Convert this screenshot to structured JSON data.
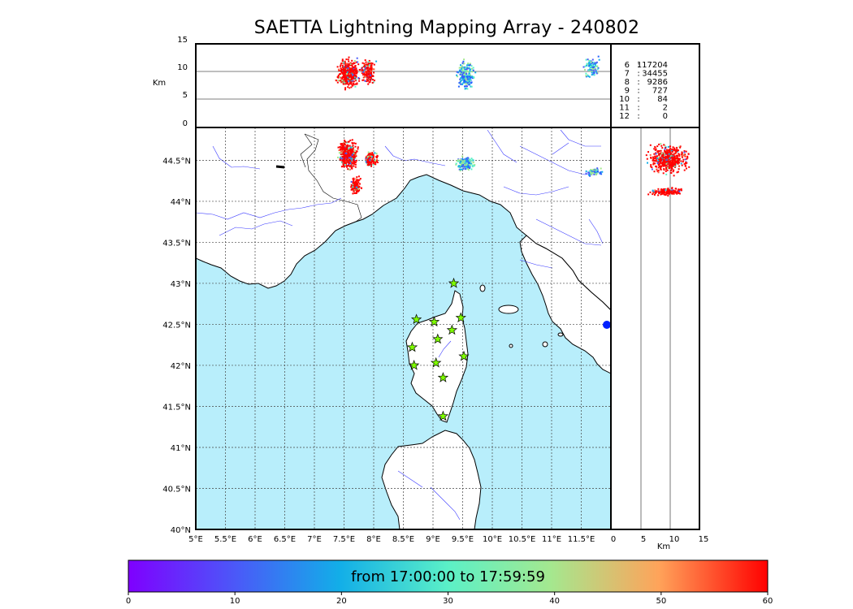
{
  "title": "SAETTA Lightning Mapping Array - 240802",
  "alt_axis": {
    "label": "Km",
    "ticks": [
      "15",
      "10",
      "5",
      "0"
    ],
    "x_ticks": [
      "0",
      "5",
      "10",
      "15"
    ],
    "x_label": "Km"
  },
  "map": {
    "lon_ticks": [
      "5°E",
      "5.5°E",
      "6°E",
      "6.5°E",
      "7°E",
      "7.5°E",
      "8°E",
      "8.5°E",
      "9°E",
      "9.5°E",
      "10°E",
      "10.5°E",
      "11°E",
      "11.5°E"
    ],
    "lat_ticks": [
      "44.5°N",
      "44°N",
      "43.5°N",
      "43°N",
      "42.5°N",
      "42°N",
      "41.5°N",
      "41°N",
      "40.5°N",
      "40°N"
    ],
    "sea_color": "#b8eefb",
    "coast_color": "#000000",
    "river_color": "#3a3aff",
    "station_color": "#7fff00",
    "stations": [
      {
        "lon": 9.35,
        "lat": 43.0
      },
      {
        "lon": 8.72,
        "lat": 42.56
      },
      {
        "lon": 9.02,
        "lat": 42.53
      },
      {
        "lon": 9.47,
        "lat": 42.58
      },
      {
        "lon": 9.32,
        "lat": 42.43
      },
      {
        "lon": 9.08,
        "lat": 42.32
      },
      {
        "lon": 8.65,
        "lat": 42.22
      },
      {
        "lon": 9.52,
        "lat": 42.11
      },
      {
        "lon": 8.68,
        "lat": 42.0
      },
      {
        "lon": 9.05,
        "lat": 42.03
      },
      {
        "lon": 9.17,
        "lat": 41.85
      },
      {
        "lon": 9.17,
        "lat": 41.38
      }
    ]
  },
  "station_counts": [
    {
      "key": "6",
      "value": "117204",
      "color": "#000000"
    },
    {
      "key": "7",
      "value": "34455",
      "color": "#ff0000"
    },
    {
      "key": "8",
      "value": "9286",
      "color": "#000000"
    },
    {
      "key": "9",
      "value": "727",
      "color": "#000000"
    },
    {
      "key": "10",
      "value": "84",
      "color": "#000000"
    },
    {
      "key": "11",
      "value": "2",
      "color": "#000000"
    },
    {
      "key": "12",
      "value": "0",
      "color": "#000000"
    }
  ],
  "colorbar": {
    "label": "from 17:00:00 to 17:59:59",
    "ticks": [
      "0",
      "10",
      "20",
      "30",
      "40",
      "50",
      "60"
    ],
    "min": 0,
    "max": 60
  }
}
